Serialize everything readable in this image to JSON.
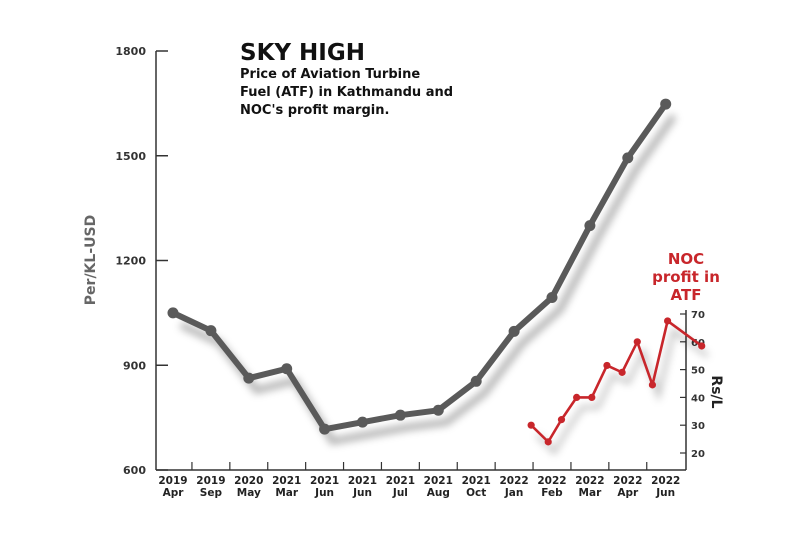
{
  "chart_data": [
    {
      "type": "line",
      "title": "SKY HIGH",
      "subtitle": [
        "Price of Aviation Turbine",
        "Fuel (ATF) in Kathmandu and",
        "NOC's profit margin."
      ],
      "ylabel": "Per/KL-USD",
      "ylim": [
        600,
        1800
      ],
      "yticks": [
        600,
        900,
        1200,
        1500,
        1800
      ],
      "categories": [
        [
          "2019",
          "Apr"
        ],
        [
          "2019",
          "Sep"
        ],
        [
          "2020",
          "May"
        ],
        [
          "2021",
          "Mar"
        ],
        [
          "2021",
          "Jun"
        ],
        [
          "2021",
          "Jun"
        ],
        [
          "2021",
          "Jul"
        ],
        [
          "2021",
          "Aug"
        ],
        [
          "2021",
          "Oct"
        ],
        [
          "2022",
          "Jan"
        ],
        [
          "2022",
          "Feb"
        ],
        [
          "2022",
          "Mar"
        ],
        [
          "2022",
          "Apr"
        ],
        [
          "2022",
          "Jun"
        ]
      ],
      "values": [
        1050,
        999,
        863,
        890,
        717,
        737,
        757,
        771,
        854,
        997,
        1094,
        1300,
        1494,
        1648
      ],
      "color": "#5a5a5a",
      "grid": false
    },
    {
      "type": "line",
      "series_label": "NOC profit in ATF",
      "ylabel": "Rs/L",
      "ylim": [
        20,
        70
      ],
      "yticks": [
        20,
        30,
        40,
        50,
        60,
        70
      ],
      "x_positions_in_category_units": [
        9.45,
        9.9,
        10.25,
        10.65,
        11.05,
        11.45,
        11.85,
        12.25,
        12.65,
        13.05,
        13.95
      ],
      "values": [
        30,
        24,
        32,
        40,
        40,
        51.5,
        49,
        60,
        44.5,
        67.5,
        58.5
      ],
      "color": "#c8262b"
    }
  ]
}
